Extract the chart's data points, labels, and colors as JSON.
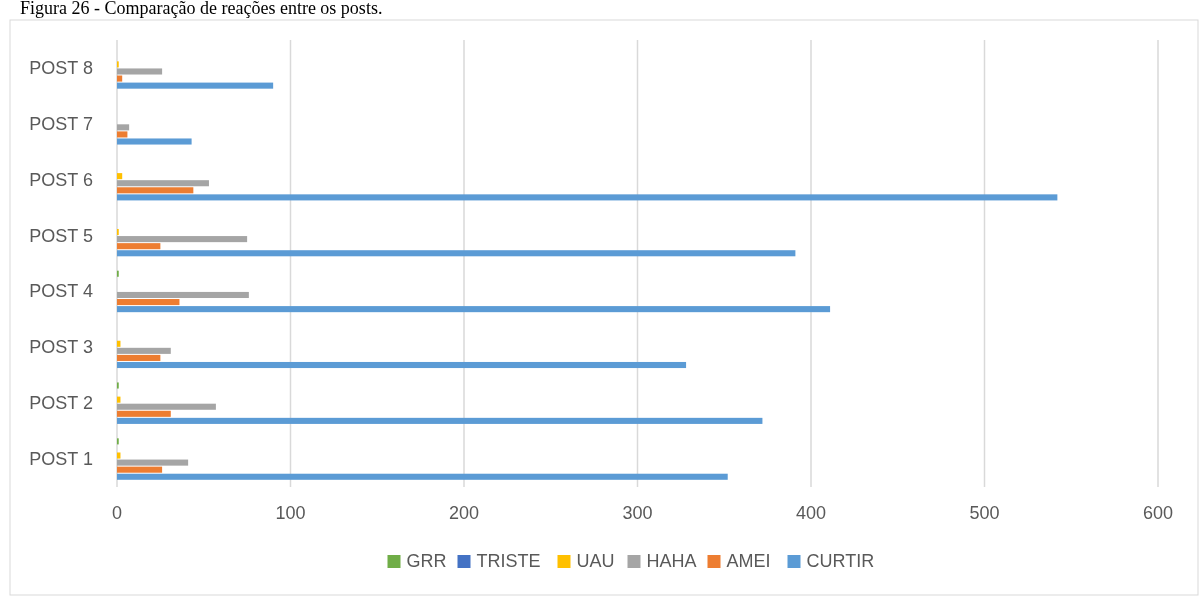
{
  "chart_data": {
    "type": "bar",
    "orientation": "horizontal",
    "title": "Figura 26 - Comparação de reações entre os posts.",
    "categories": [
      "POST 8",
      "POST 7",
      "POST 6",
      "POST 5",
      "POST 4",
      "POST 3",
      "POST 2",
      "POST 1"
    ],
    "series": [
      {
        "name": "CURTIR",
        "color": "#5b9bd5",
        "values": [
          90,
          43,
          542,
          391,
          411,
          328,
          372,
          352
        ]
      },
      {
        "name": "AMEI",
        "color": "#ed7d31",
        "values": [
          3,
          6,
          44,
          25,
          36,
          25,
          31,
          26
        ]
      },
      {
        "name": "HAHA",
        "color": "#a5a5a5",
        "values": [
          26,
          7,
          53,
          75,
          76,
          31,
          57,
          41
        ]
      },
      {
        "name": "UAU",
        "color": "#ffc000",
        "values": [
          1,
          0,
          3,
          1,
          0,
          2,
          2,
          2
        ]
      },
      {
        "name": "TRISTE",
        "color": "#4472c4",
        "values": [
          0,
          0,
          0,
          0,
          0,
          0,
          0,
          0
        ]
      },
      {
        "name": "GRR",
        "color": "#70ad47",
        "values": [
          0,
          0,
          0,
          0,
          1,
          0,
          1,
          1
        ]
      }
    ],
    "xlim": [
      0,
      600
    ],
    "xticks": [
      0,
      100,
      200,
      300,
      400,
      500,
      600
    ],
    "grid": "x",
    "legend": "bottom"
  }
}
